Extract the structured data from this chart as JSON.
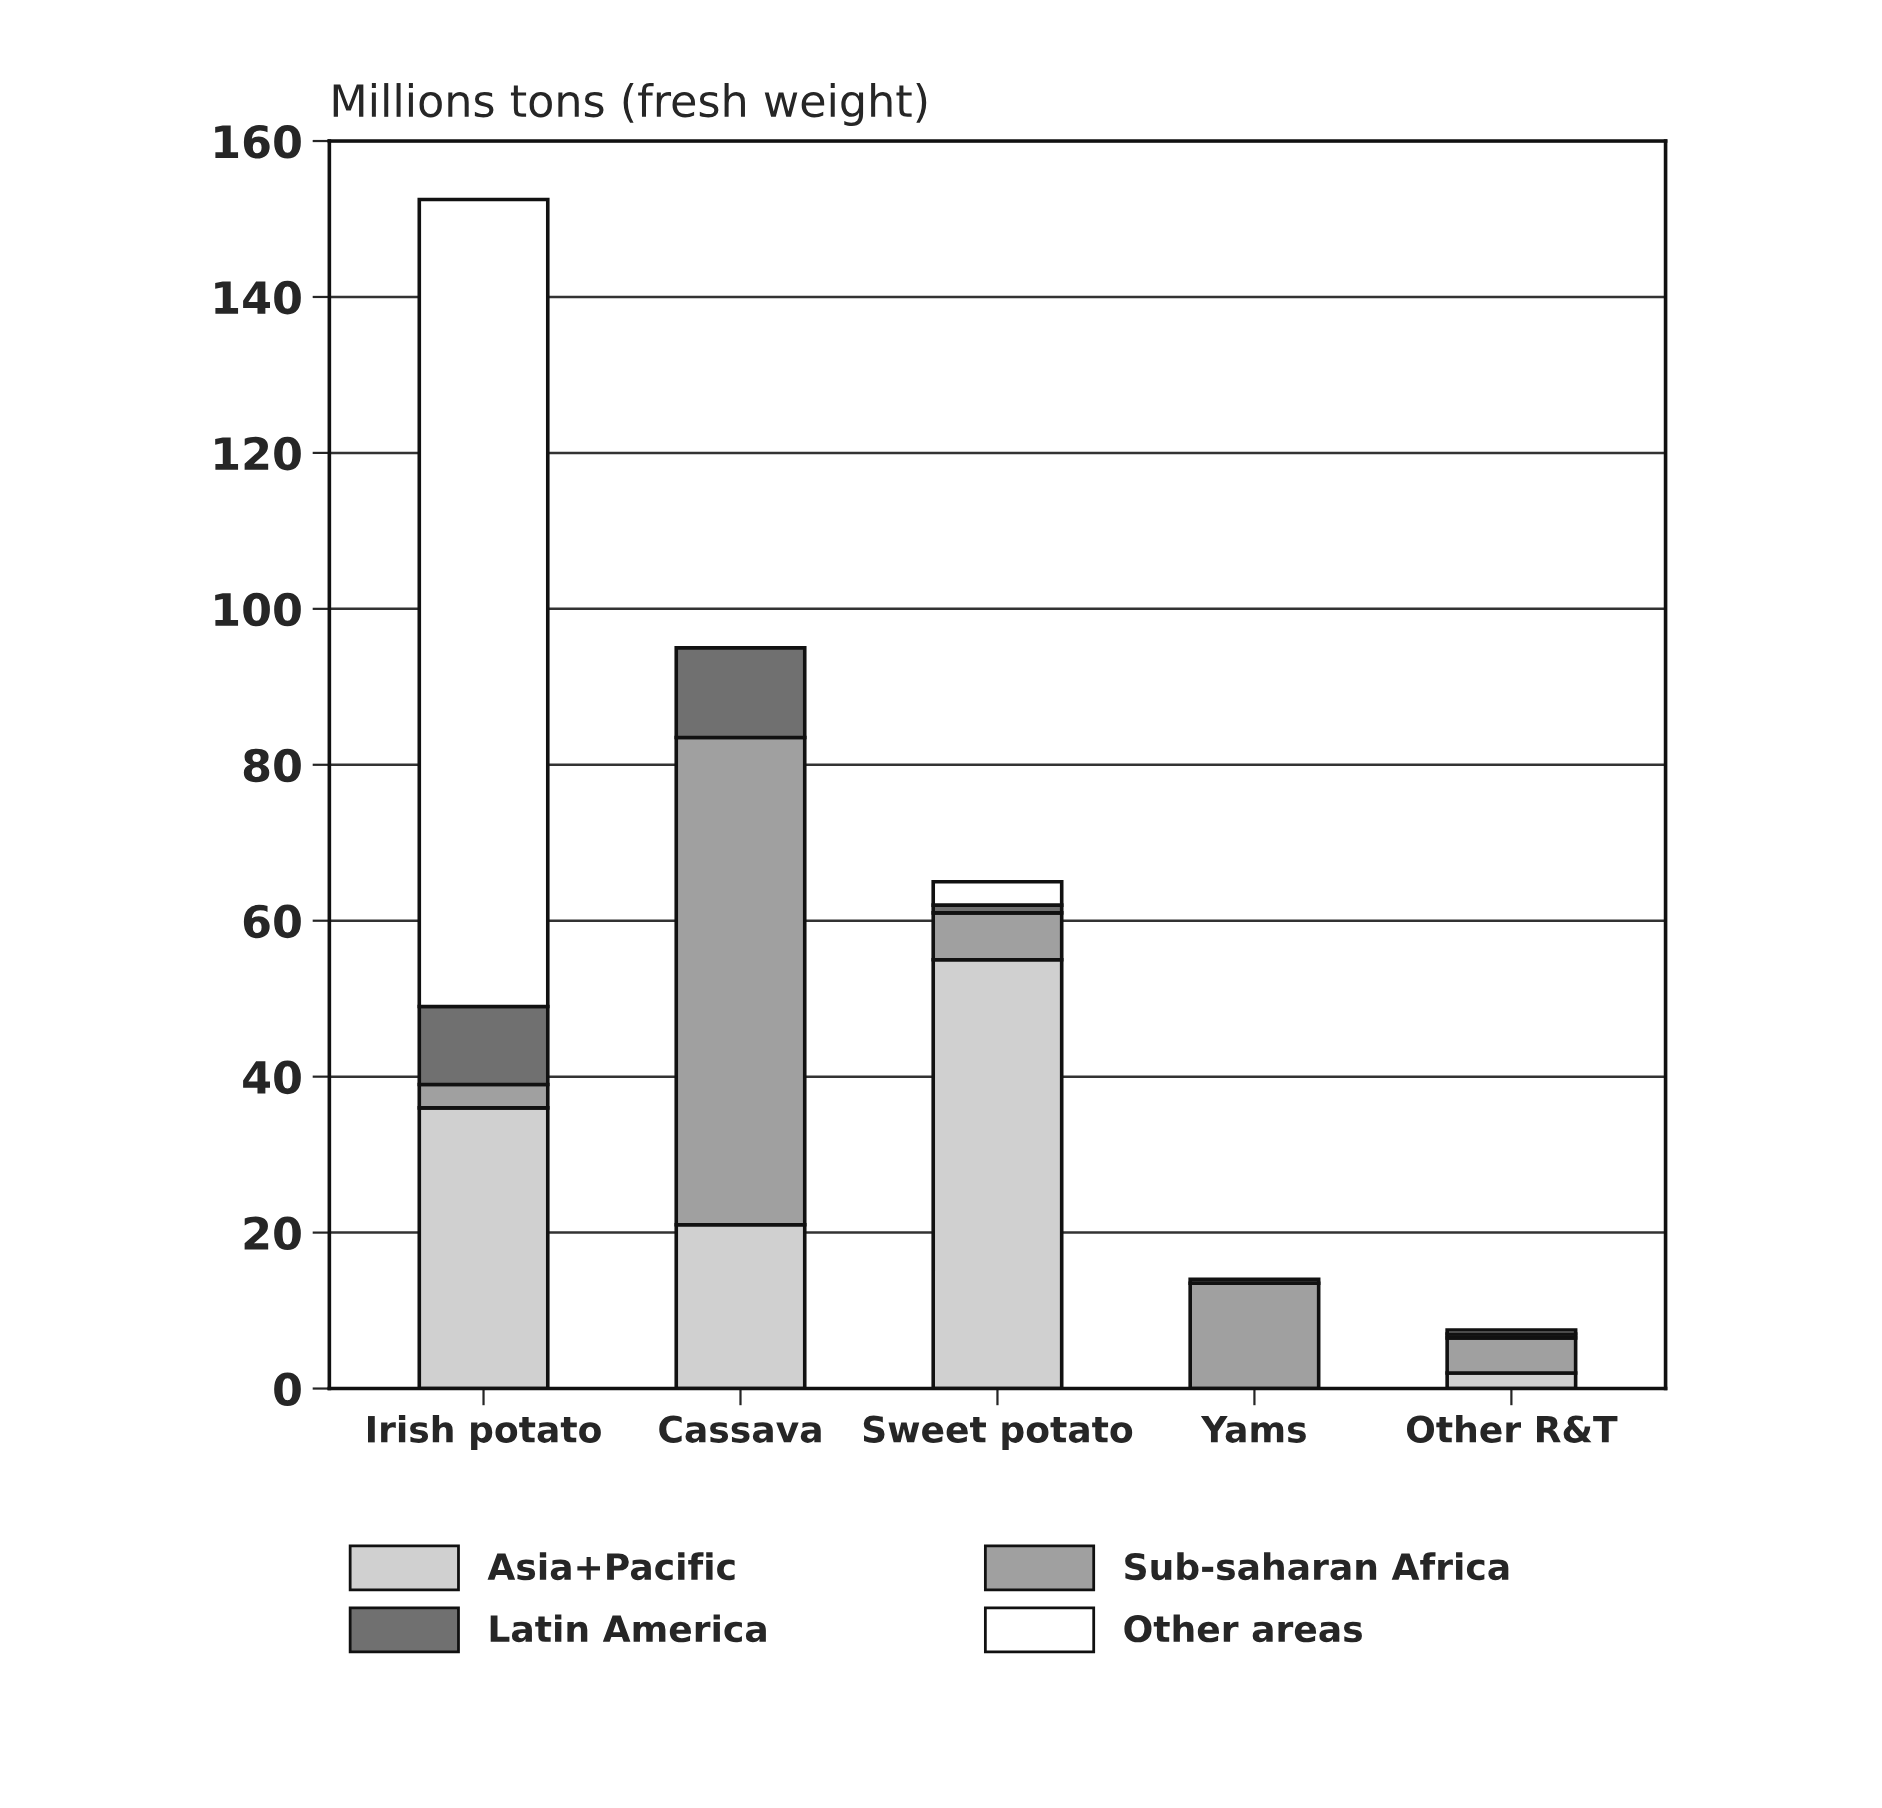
{
  "chart_data": {
    "type": "bar",
    "ylabel": "Millions tons (fresh weight)",
    "categories": [
      "Irish potato",
      "Cassava",
      "Sweet potato",
      "Yams",
      "Other R&T"
    ],
    "stacked": true,
    "series": [
      {
        "name": "Asia+Pacific",
        "color": "#d0d0d0",
        "values": [
          36,
          21,
          55,
          null,
          2
        ]
      },
      {
        "name": "Sub-saharan Africa",
        "color": "#a0a0a0",
        "values": [
          3,
          62.5,
          6,
          13.5,
          4.5
        ]
      },
      {
        "name": "Latin America",
        "color": "#707070",
        "values": [
          10,
          11.5,
          1,
          0.5,
          0.5
        ]
      },
      {
        "name": "Other areas",
        "color": "#ffffff",
        "values": [
          103.5,
          null,
          3,
          null,
          0.5
        ]
      }
    ],
    "ylim": [
      0,
      160
    ],
    "yticks": [
      0,
      20,
      40,
      60,
      80,
      100,
      120,
      140,
      160
    ],
    "grid": "y",
    "legend": "bottom"
  }
}
